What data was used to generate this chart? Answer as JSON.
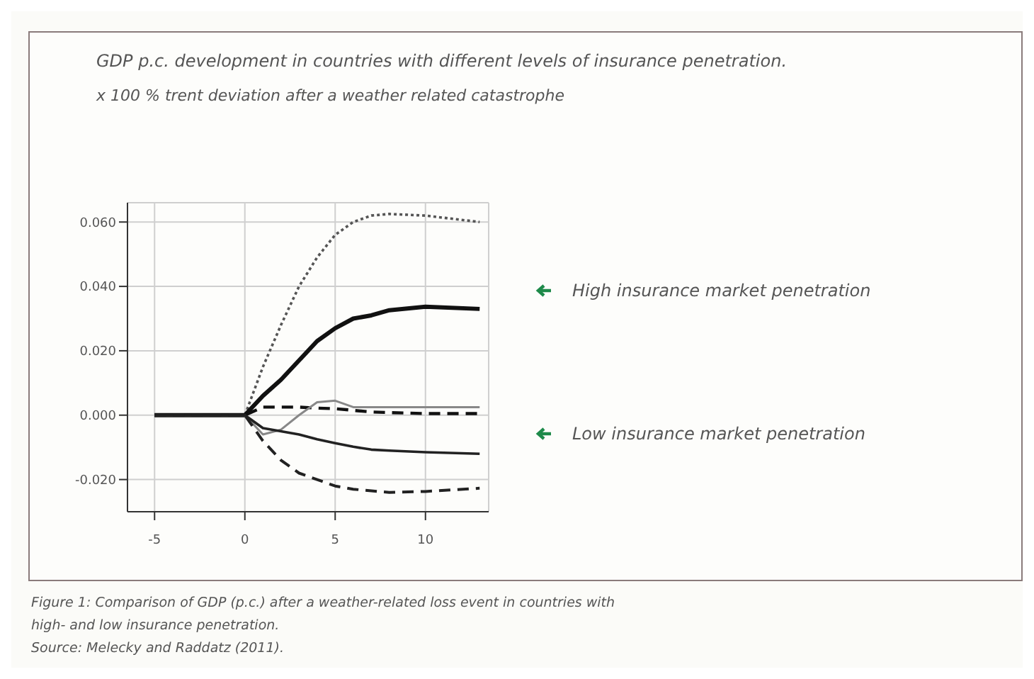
{
  "chart_data": {
    "type": "line",
    "title": "GDP p.c. development in countries with different levels of insurance penetration.",
    "subtitle": "x 100 % trent deviation after a weather related catastrophe",
    "annotations": [
      "High insurance market penetration",
      "Low insurance market penetration",
      "Figure 1: Comparison of GDP (p.c.) after a weather-related loss event in countries with high- and low insurance penetration.",
      "Source: Melecky and Raddatz (2011)."
    ],
    "x": [
      -5,
      0,
      1,
      2,
      3,
      4,
      5,
      6,
      7,
      8,
      10,
      13
    ],
    "series": [
      {
        "color": "#555555",
        "line_style": "dotted",
        "values": [
          0,
          0,
          0.015,
          0.028,
          0.04,
          0.049,
          0.056,
          0.06,
          0.062,
          0.0625,
          0.062,
          0.06
        ]
      },
      {
        "color": "#111111",
        "line_style": "solid",
        "values": [
          0,
          0,
          0.006,
          0.011,
          0.017,
          0.023,
          0.027,
          0.03,
          0.031,
          0.0326,
          0.0337,
          0.033
        ]
      },
      {
        "color": "#111111",
        "line_style": "dashed",
        "values": [
          0,
          0,
          0.0025,
          0.0025,
          0.0025,
          0.0022,
          0.002,
          0.0015,
          0.001,
          0.0008,
          0.0005,
          0.0005
        ]
      },
      {
        "color": "#888888",
        "line_style": "solid",
        "values": [
          0,
          0,
          -0.006,
          -0.0045,
          0,
          0.004,
          0.0045,
          0.0025,
          0.0025,
          0.0025,
          0.0025,
          0.0025
        ]
      },
      {
        "color": "#222222",
        "line_style": "solid",
        "values": [
          0,
          0,
          -0.004,
          -0.005,
          -0.006,
          -0.0075,
          -0.0087,
          -0.0098,
          -0.0107,
          -0.011,
          -0.0115,
          -0.012
        ]
      },
      {
        "color": "#222222",
        "line_style": "dashed",
        "values": [
          0,
          0,
          -0.008,
          -0.014,
          -0.018,
          -0.02,
          -0.022,
          -0.023,
          -0.0235,
          -0.024,
          -0.0237,
          -0.0227
        ]
      }
    ],
    "xlim": [
      -6.5,
      13.5
    ],
    "xticks": [
      -5,
      0,
      5,
      10
    ],
    "ylim": [
      -0.03,
      0.066
    ],
    "yticks": [
      {
        "value": -0.02,
        "label": "-0.020"
      },
      {
        "value": 0,
        "label": "0.000"
      },
      {
        "value": 0.02,
        "label": "0.020"
      },
      {
        "value": 0.04,
        "label": "0.040"
      },
      {
        "value": 0.06,
        "label": "0.060"
      }
    ],
    "grid": true,
    "legend": false,
    "marker": "none"
  }
}
